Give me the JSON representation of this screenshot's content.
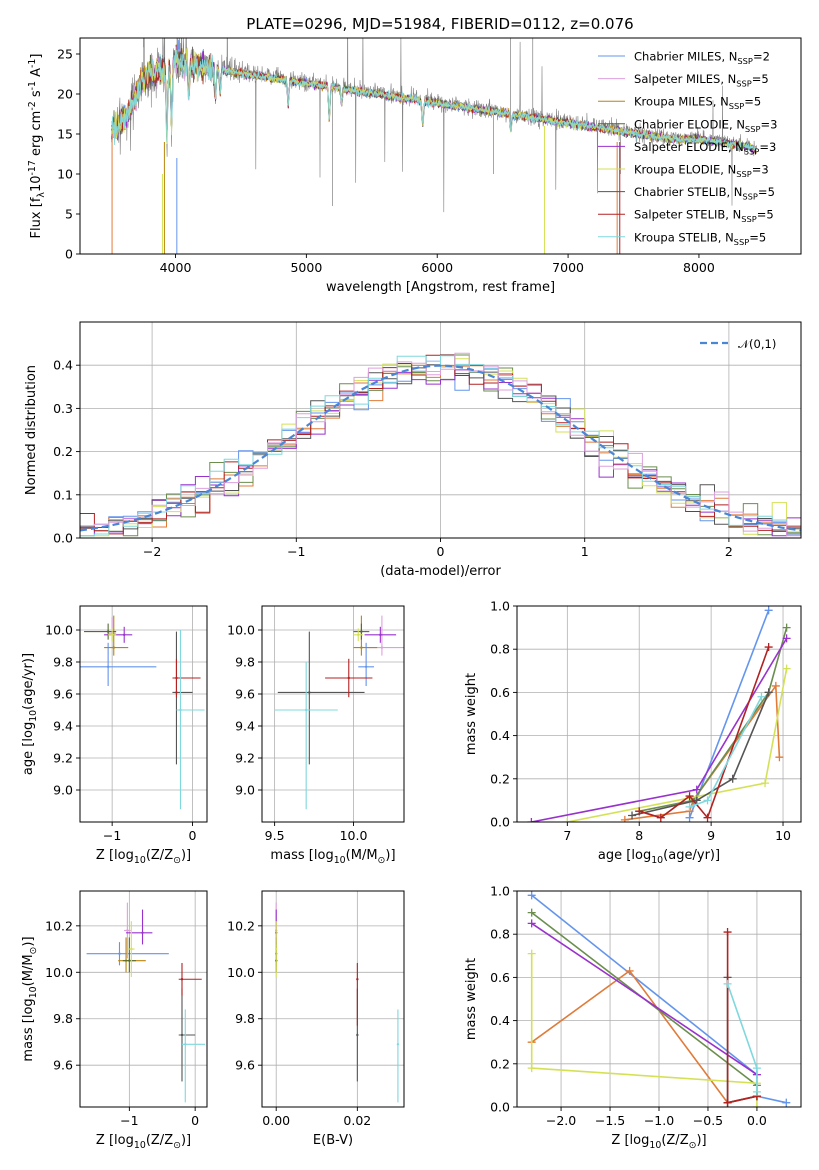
{
  "colors": {
    "chabrier_miles": "#6495ED",
    "salpeter_miles": "#DDA0DD",
    "kroupa_miles": "#B8860B",
    "chabrier_elodie": "#556B2F",
    "salpeter_elodie": "#9932CC",
    "kroupa_elodie": "#D4E157",
    "chabrier_stelib": "#555555",
    "salpeter_stelib": "#B22222",
    "kroupa_stelib": "#7FD8DE",
    "orange": "#E07B39",
    "model_green": "#6B8E4E",
    "data_gray": "#808080",
    "grid": "#b0b0b0",
    "gauss": "#4A86D6"
  },
  "chart_data": [
    {
      "id": "spectrum",
      "type": "line",
      "title": "PLATE=0296, MJD=51984, FIBERID=0112, z=0.076",
      "xlabel": "wavelength [Angstrom, rest frame]",
      "ylabel": "Flux [fλ10⁻¹⁷ erg cm⁻² s⁻¹ A⁻¹]",
      "xlim": [
        3270,
        8780
      ],
      "ylim": [
        0,
        27
      ],
      "xticks": [
        4000,
        5000,
        6000,
        7000,
        8000
      ],
      "yticks": [
        0,
        5,
        10,
        15,
        20,
        25
      ],
      "grid": false,
      "legend_position": "upper right",
      "continuum": {
        "x": [
          3500,
          3550,
          3650,
          3750,
          3850,
          3950,
          4000,
          4100,
          4200,
          4300,
          4400,
          4600,
          4800,
          5000,
          5200,
          5400,
          5600,
          5800,
          6000,
          6200,
          6400,
          6600,
          6800,
          7000,
          7200,
          7400,
          7600,
          7800,
          8000,
          8200,
          8400,
          8440
        ],
        "y": [
          15.5,
          16.0,
          18.0,
          22.0,
          23.0,
          23.5,
          24.5,
          24.0,
          23.5,
          23.5,
          23.0,
          22.5,
          22.0,
          21.5,
          21.0,
          20.5,
          20.0,
          19.5,
          19.0,
          18.5,
          18.0,
          17.5,
          17.0,
          16.5,
          16.0,
          15.5,
          15.0,
          14.5,
          14.5,
          14.0,
          13.5,
          13.0
        ]
      },
      "series": [
        {
          "name": "Chabrier MILES, N$_{SSP}$=2",
          "color_key": "chabrier_miles"
        },
        {
          "name": "Salpeter MILES, N$_{SSP}$=5",
          "color_key": "salpeter_miles"
        },
        {
          "name": "Kroupa MILES, N$_{SSP}$=5",
          "color_key": "kroupa_miles"
        },
        {
          "name": "Chabrier ELODIE, N$_{SSP}$=3",
          "color_key": "chabrier_elodie"
        },
        {
          "name": "Salpeter ELODIE, N$_{SSP}$=3",
          "color_key": "salpeter_elodie"
        },
        {
          "name": "Kroupa ELODIE, N$_{SSP}$=3",
          "color_key": "kroupa_elodie"
        },
        {
          "name": "Chabrier STELIB, N$_{SSP}$=5",
          "color_key": "chabrier_stelib"
        },
        {
          "name": "Salpeter STELIB, N$_{SSP}$=5",
          "color_key": "salpeter_stelib"
        },
        {
          "name": "Kroupa STELIB, N$_{SSP}$=5",
          "color_key": "kroupa_stelib"
        }
      ]
    },
    {
      "id": "residuals",
      "type": "line",
      "xlabel": "(data-model)/error",
      "ylabel": "Normed distribution",
      "xlim": [
        -2.5,
        2.5
      ],
      "ylim": [
        0,
        0.5
      ],
      "xticks": [
        -2,
        -1,
        0,
        1,
        2
      ],
      "yticks": [
        0.0,
        0.1,
        0.2,
        0.3,
        0.4
      ],
      "grid": true,
      "legend": "$\\mathcal{N}(0,1)$",
      "legend_position": "upper right",
      "bin_width": 0.1
    },
    {
      "id": "age_vs_Z",
      "type": "scatter",
      "xlabel": "Z [log$_{10}$(Z/Z$_\\odot$)]",
      "ylabel": "age  [log$_{10}$(age/yr)]",
      "xlim": [
        -1.4,
        0.18
      ],
      "ylim": [
        8.8,
        10.15
      ],
      "xticks": [
        -1,
        0
      ],
      "yticks": [
        9.0,
        9.2,
        9.4,
        9.6,
        9.8,
        10.0
      ],
      "grid": true,
      "points": [
        {
          "x": -1.05,
          "y": 9.77,
          "xerr": [
            0.35,
            0.6
          ],
          "yerr": [
            0.12,
            0.15
          ],
          "color_key": "chabrier_miles"
        },
        {
          "x": -1.0,
          "y": 9.98,
          "xerr": [
            0.05,
            0.05
          ],
          "yerr": [
            0.05,
            0.1
          ],
          "color_key": "salpeter_miles"
        },
        {
          "x": -0.98,
          "y": 9.89,
          "xerr": [
            0.12,
            0.18
          ],
          "yerr": [
            0.05,
            0.2
          ],
          "color_key": "kroupa_miles"
        },
        {
          "x": -1.05,
          "y": 9.99,
          "xerr": [
            0.3,
            0.1
          ],
          "yerr": [
            0.05,
            0.05
          ],
          "color_key": "chabrier_elodie"
        },
        {
          "x": -0.85,
          "y": 9.97,
          "xerr": [
            0.25,
            0.1
          ],
          "yerr": [
            0.05,
            0.05
          ],
          "color_key": "salpeter_elodie"
        },
        {
          "x": -1.0,
          "y": 9.97,
          "xerr": [
            0.05,
            0.05
          ],
          "yerr": [
            0.04,
            0.04
          ],
          "color_key": "kroupa_elodie"
        },
        {
          "x": -0.2,
          "y": 9.61,
          "xerr": [
            0.05,
            0.2
          ],
          "yerr": [
            0.45,
            0.38
          ],
          "color_key": "chabrier_stelib"
        },
        {
          "x": -0.2,
          "y": 9.7,
          "xerr": [
            0.05,
            0.3
          ],
          "yerr": [
            0.12,
            0.12
          ],
          "color_key": "salpeter_stelib"
        },
        {
          "x": -0.15,
          "y": 9.5,
          "xerr": [
            0.05,
            0.3
          ],
          "yerr": [
            0.62,
            0.5
          ],
          "color_key": "kroupa_stelib"
        }
      ]
    },
    {
      "id": "age_vs_mass",
      "type": "scatter",
      "xlabel": "mass [log$_{10}$(M/M$_\\odot$)]",
      "ylabel": "",
      "xlim": [
        9.42,
        10.32
      ],
      "ylim": [
        8.8,
        10.15
      ],
      "xticks": [
        9.5,
        10.0
      ],
      "yticks": [
        9.0,
        9.2,
        9.4,
        9.6,
        9.8,
        10.0
      ],
      "grid": true,
      "points": [
        {
          "x": 10.08,
          "y": 9.77,
          "xerr": [
            0.05,
            0.05
          ],
          "yerr": [
            0.12,
            0.15
          ],
          "color_key": "chabrier_miles"
        },
        {
          "x": 10.18,
          "y": 9.89,
          "xerr": [
            0.1,
            0.15
          ],
          "yerr": [
            0.05,
            0.2
          ],
          "color_key": "salpeter_miles"
        },
        {
          "x": 10.05,
          "y": 9.89,
          "xerr": [
            0.05,
            0.1
          ],
          "yerr": [
            0.05,
            0.2
          ],
          "color_key": "kroupa_miles"
        },
        {
          "x": 10.05,
          "y": 9.99,
          "xerr": [
            0.05,
            0.05
          ],
          "yerr": [
            0.05,
            0.05
          ],
          "color_key": "chabrier_elodie"
        },
        {
          "x": 10.17,
          "y": 9.97,
          "xerr": [
            0.1,
            0.1
          ],
          "yerr": [
            0.05,
            0.05
          ],
          "color_key": "salpeter_elodie"
        },
        {
          "x": 10.03,
          "y": 9.97,
          "xerr": [
            0.03,
            0.03
          ],
          "yerr": [
            0.04,
            0.04
          ],
          "color_key": "kroupa_elodie"
        },
        {
          "x": 9.72,
          "y": 9.61,
          "xerr": [
            0.2,
            0.35
          ],
          "yerr": [
            0.45,
            0.38
          ],
          "color_key": "chabrier_stelib"
        },
        {
          "x": 9.97,
          "y": 9.7,
          "xerr": [
            0.15,
            0.15
          ],
          "yerr": [
            0.12,
            0.12
          ],
          "color_key": "salpeter_stelib"
        },
        {
          "x": 9.7,
          "y": 9.5,
          "xerr": [
            0.2,
            0.2
          ],
          "yerr": [
            0.62,
            0.3
          ],
          "color_key": "kroupa_stelib"
        }
      ]
    },
    {
      "id": "weight_vs_age",
      "type": "line",
      "xlabel": "age  [log$_{10}$(age/yr)]",
      "ylabel": "mass weight",
      "xlim": [
        6.3,
        10.25
      ],
      "ylim": [
        0,
        1.0
      ],
      "xticks": [
        7,
        8,
        9,
        10
      ],
      "yticks": [
        0.0,
        0.2,
        0.4,
        0.6,
        0.8,
        1.0
      ],
      "grid": true,
      "series": [
        {
          "color_key": "chabrier_miles",
          "x": [
            8.7,
            9.8
          ],
          "y": [
            0.02,
            0.98
          ]
        },
        {
          "color_key": "orange",
          "x": [
            7.8,
            8.7,
            8.75,
            9.9,
            9.95
          ],
          "y": [
            0.01,
            0.05,
            0.1,
            0.63,
            0.3
          ]
        },
        {
          "color_key": "model_green",
          "x": [
            8.0,
            8.75,
            9.8,
            10.05
          ],
          "y": [
            0.05,
            0.1,
            0.6,
            0.9
          ]
        },
        {
          "color_key": "salpeter_elodie",
          "x": [
            6.5,
            8.8,
            10.05
          ],
          "y": [
            0.0,
            0.15,
            0.85
          ]
        },
        {
          "color_key": "kroupa_elodie",
          "x": [
            7.0,
            9.75,
            10.05
          ],
          "y": [
            0.0,
            0.18,
            0.71
          ]
        },
        {
          "color_key": "chabrier_stelib",
          "x": [
            7.9,
            8.8,
            9.3,
            9.8
          ],
          "y": [
            0.03,
            0.1,
            0.2,
            0.6
          ]
        },
        {
          "color_key": "salpeter_stelib",
          "x": [
            8.0,
            8.3,
            8.7,
            8.95,
            9.8
          ],
          "y": [
            0.05,
            0.02,
            0.12,
            0.02,
            0.81
          ]
        },
        {
          "color_key": "kroupa_stelib",
          "x": [
            8.7,
            8.95,
            9.7
          ],
          "y": [
            0.07,
            0.1,
            0.58
          ]
        }
      ]
    },
    {
      "id": "mass_vs_Z",
      "type": "scatter",
      "xlabel": "Z [log$_{10}$(Z/Z$_\\odot$)]",
      "ylabel": "mass [log$_{10}$(M/M$_\\odot$)]",
      "xlim": [
        -1.75,
        0.18
      ],
      "ylim": [
        9.42,
        10.35
      ],
      "xticks": [
        -1,
        0
      ],
      "yticks": [
        9.6,
        9.8,
        10.0,
        10.2
      ],
      "grid": true,
      "points": [
        {
          "x": -1.15,
          "y": 10.08,
          "xerr": [
            0.5,
            0.75
          ],
          "yerr": [
            0.05,
            0.05
          ],
          "color_key": "chabrier_miles"
        },
        {
          "x": -1.03,
          "y": 10.18,
          "xerr": [
            0.05,
            0.05
          ],
          "yerr": [
            0.12,
            0.12
          ],
          "color_key": "salpeter_miles"
        },
        {
          "x": -1.05,
          "y": 10.05,
          "xerr": [
            0.12,
            0.3
          ],
          "yerr": [
            0.05,
            0.1
          ],
          "color_key": "kroupa_miles"
        },
        {
          "x": -1.0,
          "y": 10.05,
          "xerr": [
            0.1,
            0.1
          ],
          "yerr": [
            0.05,
            0.1
          ],
          "color_key": "chabrier_elodie"
        },
        {
          "x": -0.8,
          "y": 10.17,
          "xerr": [
            0.25,
            0.15
          ],
          "yerr": [
            0.05,
            0.1
          ],
          "color_key": "salpeter_elodie"
        },
        {
          "x": -0.97,
          "y": 10.1,
          "xerr": [
            0.05,
            0.05
          ],
          "yerr": [
            0.12,
            0.12
          ],
          "color_key": "kroupa_elodie"
        },
        {
          "x": -0.2,
          "y": 9.73,
          "xerr": [
            0.05,
            0.2
          ],
          "yerr": [
            0.2,
            0.2
          ],
          "color_key": "chabrier_stelib"
        },
        {
          "x": -0.2,
          "y": 9.97,
          "xerr": [
            0.05,
            0.3
          ],
          "yerr": [
            0.07,
            0.07
          ],
          "color_key": "salpeter_stelib"
        },
        {
          "x": -0.15,
          "y": 9.69,
          "xerr": [
            0.05,
            0.3
          ],
          "yerr": [
            0.25,
            0.15
          ],
          "color_key": "kroupa_stelib"
        }
      ]
    },
    {
      "id": "mass_vs_EBV",
      "type": "scatter",
      "xlabel": "E(B-V)",
      "ylabel": "",
      "xlim": [
        -0.0035,
        0.0315
      ],
      "ylim": [
        9.42,
        10.35
      ],
      "xticks": [
        0.0,
        0.02
      ],
      "yticks": [
        9.6,
        9.8,
        10.0,
        10.2
      ],
      "grid": true,
      "points": [
        {
          "x": 0.0,
          "y": 10.08,
          "yerr": [
            0.05,
            0.05
          ],
          "color_key": "chabrier_miles"
        },
        {
          "x": 0.0,
          "y": 10.18,
          "yerr": [
            0.12,
            0.12
          ],
          "color_key": "salpeter_miles"
        },
        {
          "x": 0.0,
          "y": 10.05,
          "yerr": [
            0.05,
            0.1
          ],
          "color_key": "kroupa_miles"
        },
        {
          "x": 0.0,
          "y": 10.05,
          "yerr": [
            0.05,
            0.1
          ],
          "color_key": "chabrier_elodie"
        },
        {
          "x": 0.0,
          "y": 10.17,
          "yerr": [
            0.05,
            0.1
          ],
          "color_key": "salpeter_elodie"
        },
        {
          "x": 0.0,
          "y": 10.1,
          "yerr": [
            0.12,
            0.12
          ],
          "color_key": "kroupa_elodie"
        },
        {
          "x": 0.02,
          "y": 9.73,
          "yerr": [
            0.2,
            0.2
          ],
          "color_key": "chabrier_stelib"
        },
        {
          "x": 0.02,
          "y": 9.97,
          "yerr": [
            0.2,
            0.07
          ],
          "color_key": "salpeter_stelib"
        },
        {
          "x": 0.03,
          "y": 9.69,
          "yerr": [
            0.25,
            0.15
          ],
          "color_key": "kroupa_stelib"
        }
      ]
    },
    {
      "id": "weight_vs_Z",
      "type": "line",
      "xlabel": "Z [log$_{10}$(Z/Z$_\\odot$)]",
      "ylabel": "mass weight",
      "xlim": [
        -2.45,
        0.45
      ],
      "ylim": [
        0,
        1.0
      ],
      "xticks": [
        -2.0,
        -1.5,
        -1.0,
        -0.5,
        0.0
      ],
      "yticks": [
        0.0,
        0.2,
        0.4,
        0.6,
        0.8,
        1.0
      ],
      "grid": true,
      "series": [
        {
          "color_key": "chabrier_miles",
          "x": [
            -2.3,
            0.0,
            0.0,
            0.3
          ],
          "y": [
            0.98,
            0.15,
            0.05,
            0.02
          ]
        },
        {
          "color_key": "orange",
          "x": [
            -2.3,
            -1.3,
            -0.3,
            0.0
          ],
          "y": [
            0.3,
            0.63,
            0.02,
            0.05
          ]
        },
        {
          "color_key": "model_green",
          "x": [
            -2.3,
            0.0,
            0.0
          ],
          "y": [
            0.9,
            0.1,
            0.05
          ]
        },
        {
          "color_key": "salpeter_elodie",
          "x": [
            -2.3,
            0.0
          ],
          "y": [
            0.85,
            0.15
          ]
        },
        {
          "color_key": "kroupa_elodie",
          "x": [
            -2.3,
            -2.3,
            0.0,
            0.0
          ],
          "y": [
            0.71,
            0.18,
            0.11,
            0.0
          ]
        },
        {
          "color_key": "chabrier_stelib",
          "x": [
            -0.3,
            -0.3,
            0.0
          ],
          "y": [
            0.6,
            0.02,
            0.05
          ]
        },
        {
          "color_key": "salpeter_stelib",
          "x": [
            -0.3,
            -0.3,
            0.0
          ],
          "y": [
            0.81,
            0.02,
            0.05
          ]
        },
        {
          "color_key": "kroupa_stelib",
          "x": [
            -0.3,
            0.0,
            0.0
          ],
          "y": [
            0.57,
            0.18,
            0.07
          ]
        }
      ]
    }
  ]
}
